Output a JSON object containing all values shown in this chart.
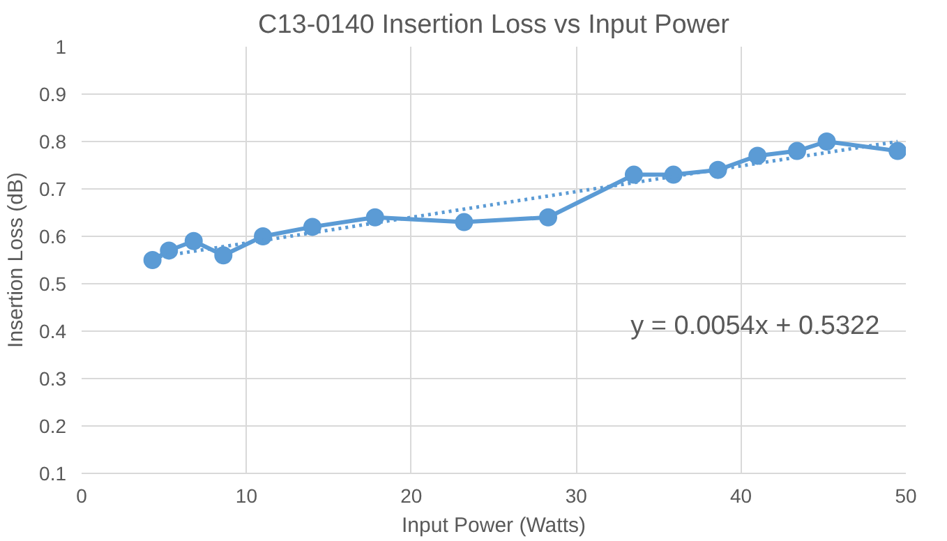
{
  "chart_data": {
    "type": "line",
    "title": "C13-0140 Insertion Loss vs Input Power",
    "xlabel": "Input Power (Watts)",
    "ylabel": "Insertion Loss (dB)",
    "annotations": [
      "y = 0.0054x + 0.5322"
    ],
    "series": [
      {
        "color": "#5b9bd5",
        "marker": "circle",
        "line_style": "solid",
        "x": [
          4.3,
          5.3,
          6.8,
          8.6,
          11.0,
          14.0,
          17.8,
          23.2,
          28.3,
          33.5,
          35.9,
          38.6,
          41.0,
          43.4,
          45.2,
          49.5
        ],
        "values": [
          0.55,
          0.57,
          0.59,
          0.56,
          0.6,
          0.62,
          0.64,
          0.63,
          0.64,
          0.73,
          0.73,
          0.74,
          0.77,
          0.78,
          0.8,
          0.78
        ]
      },
      {
        "type": "line",
        "color": "#5b9bd5",
        "marker": "none",
        "line_style": "dotted",
        "x": [
          4.3,
          49.5
        ],
        "values": [
          0.555,
          0.8
        ]
      }
    ],
    "xlim": [
      0,
      50
    ],
    "xticks": [
      0,
      10,
      20,
      30,
      40,
      50
    ],
    "ylim": [
      0.1,
      1
    ],
    "yticks": [
      0.1,
      0.2,
      0.3,
      0.4,
      0.5,
      0.6,
      0.7,
      0.8,
      0.9,
      1
    ],
    "grid": true
  }
}
